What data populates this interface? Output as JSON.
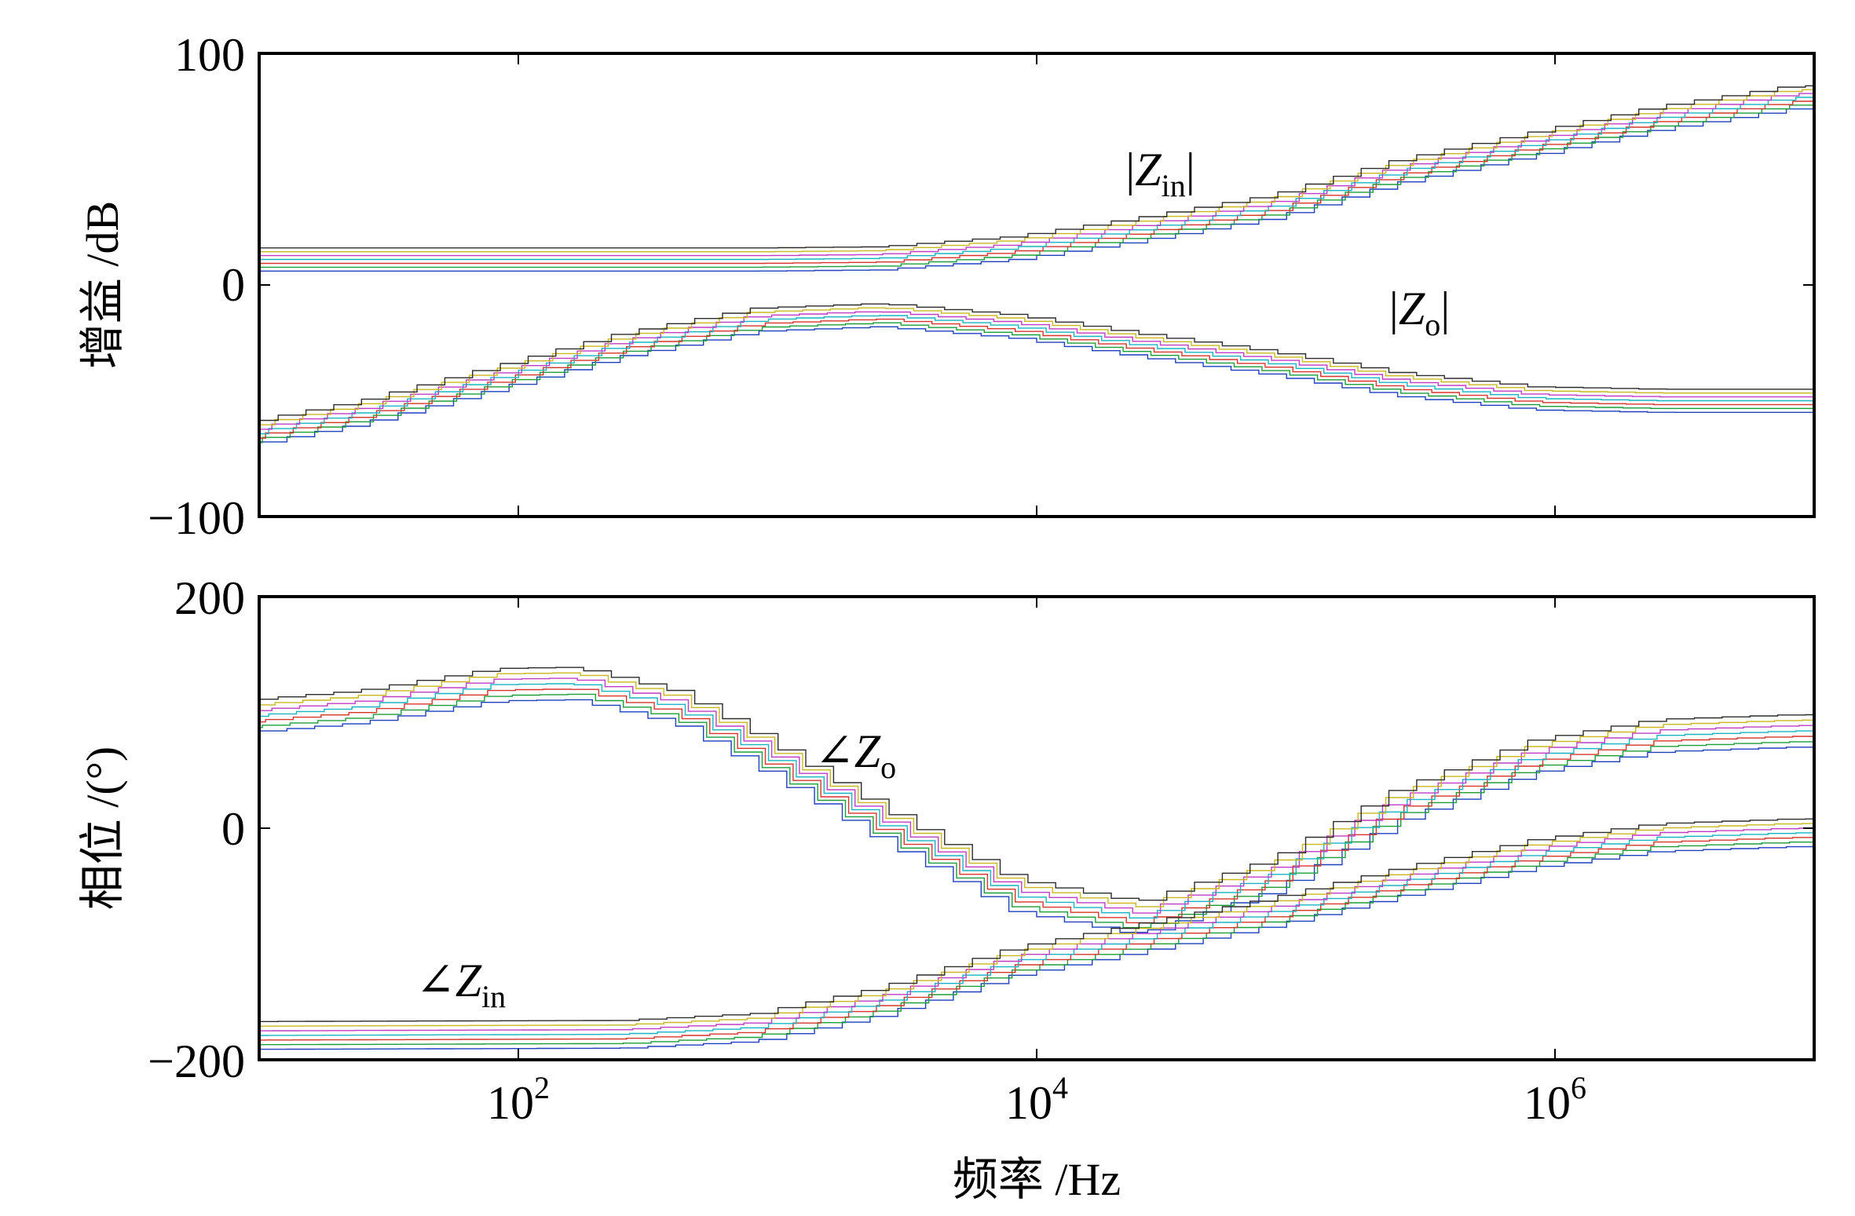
{
  "chart_data": [
    {
      "type": "line",
      "ylabel": "增益 /dB",
      "xlabel": "",
      "x_scale": "log",
      "xlim": [
        10,
        10000000
      ],
      "ylim": [
        -100,
        100
      ],
      "ytick_labels": [
        "100",
        "0",
        "−100"
      ],
      "grid": false,
      "annotations": [
        {
          "id": "zin",
          "name": "|Zin|",
          "prefix": "|",
          "symbol": "Z",
          "sub": "in",
          "suffix": "|",
          "x": 30000,
          "y": 43
        },
        {
          "id": "zo",
          "name": "|Zo|",
          "prefix": "|",
          "symbol": "Z",
          "sub": "o",
          "suffix": "|",
          "x": 300000,
          "y": -17
        }
      ],
      "band_colors": [
        "#1f3fbf",
        "#1a9e3a",
        "#d9342b",
        "#17b5c4",
        "#c23bc6",
        "#c9b81c",
        "#2b2b2b"
      ],
      "series": [
        {
          "id": "mag_zin",
          "label": "|Zin|",
          "band_width": 5,
          "x": [
            10,
            100,
            1000,
            3000,
            10000,
            30000,
            100000,
            300000,
            1000000,
            3000000,
            10000000
          ],
          "y": [
            11,
            11,
            11,
            11.5,
            16,
            24,
            34,
            49,
            61,
            72,
            81
          ]
        },
        {
          "id": "mag_zo",
          "label": "|Zo|",
          "band_width": 5,
          "x": [
            10,
            30,
            100,
            300,
            1000,
            3000,
            10000,
            30000,
            100000,
            300000,
            1000000,
            3000000,
            10000000
          ],
          "y": [
            -65,
            -55,
            -40,
            -26,
            -15,
            -13,
            -18,
            -26,
            -34,
            -43,
            -49,
            -50,
            -50
          ]
        }
      ]
    },
    {
      "type": "line",
      "ylabel": "相位 /(°)",
      "xlabel": "频率 /Hz",
      "x_scale": "log",
      "xlim": [
        10,
        10000000
      ],
      "ylim": [
        -200,
        200
      ],
      "xtick_labels": [
        {
          "value": 100,
          "base": "10",
          "exp": "2"
        },
        {
          "value": 10000,
          "base": "10",
          "exp": "4"
        },
        {
          "value": 1000000,
          "base": "10",
          "exp": "6"
        }
      ],
      "ytick_labels": [
        "200",
        "0",
        "−200"
      ],
      "grid": false,
      "annotations": [
        {
          "id": "phase_zo",
          "name": "∠Zo",
          "prefix": "∠",
          "symbol": "Z",
          "sub": "o",
          "suffix": "",
          "x": 2000,
          "y": 53
        },
        {
          "id": "phase_zin",
          "name": "∠Zin",
          "prefix": "∠",
          "symbol": "Z",
          "sub": "in",
          "suffix": "",
          "x": 60,
          "y": -145
        }
      ],
      "band_colors": [
        "#1f3fbf",
        "#1a9e3a",
        "#d9342b",
        "#17b5c4",
        "#c23bc6",
        "#c9b81c",
        "#2b2b2b"
      ],
      "series": [
        {
          "id": "phase_zo",
          "label": "∠Zo",
          "band_width": 14,
          "x": [
            10,
            30,
            100,
            200,
            500,
            1000,
            3000,
            10000,
            30000,
            100000,
            300000,
            1000000,
            3000000,
            10000000
          ],
          "y": [
            96,
            105,
            124,
            125,
            104,
            68,
            5,
            -58,
            -78,
            -40,
            20,
            62,
            80,
            84
          ]
        },
        {
          "id": "phase_zin",
          "label": "∠Zin",
          "band_width": 12,
          "x": [
            10,
            300,
            1000,
            3000,
            10000,
            30000,
            100000,
            300000,
            1000000,
            3000000,
            10000000
          ],
          "y": [
            -179,
            -178,
            -172,
            -150,
            -115,
            -95,
            -72,
            -47,
            -22,
            -8,
            -4
          ]
        }
      ]
    }
  ]
}
